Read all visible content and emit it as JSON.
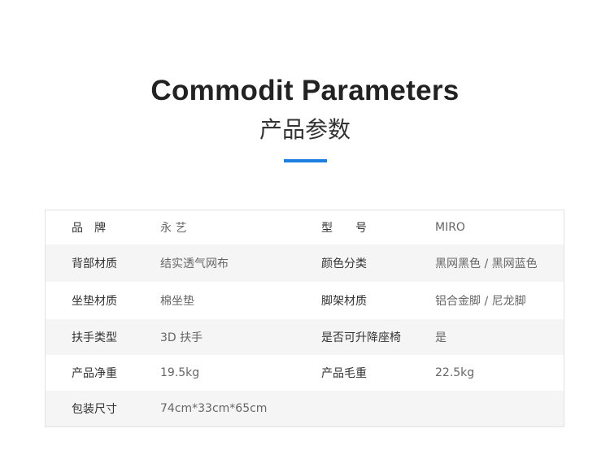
{
  "header": {
    "title": "Commodit Parameters",
    "subtitle": "产品参数",
    "accent_color": "#1a7fe0"
  },
  "rows": [
    {
      "label1": "品　牌",
      "value1": "永 艺",
      "label2": "型　　号",
      "value2": "MIRO"
    },
    {
      "label1": "背部材质",
      "value1": "结实透气网布",
      "label2": "颜色分类",
      "value2": "黑网黑色 / 黑网蓝色"
    },
    {
      "label1": "坐垫材质",
      "value1": "棉坐垫",
      "label2": "脚架材质",
      "value2": "铝合金脚 / 尼龙脚"
    },
    {
      "label1": "扶手类型",
      "value1": "3D 扶手",
      "label2": "是否可升降座椅",
      "value2": "是"
    },
    {
      "label1": "产品净重",
      "value1": "19.5kg",
      "label2": "产品毛重",
      "value2": "22.5kg"
    },
    {
      "label1": "包装尺寸",
      "value1": "74cm*33cm*65cm",
      "label2": "",
      "value2": ""
    }
  ]
}
